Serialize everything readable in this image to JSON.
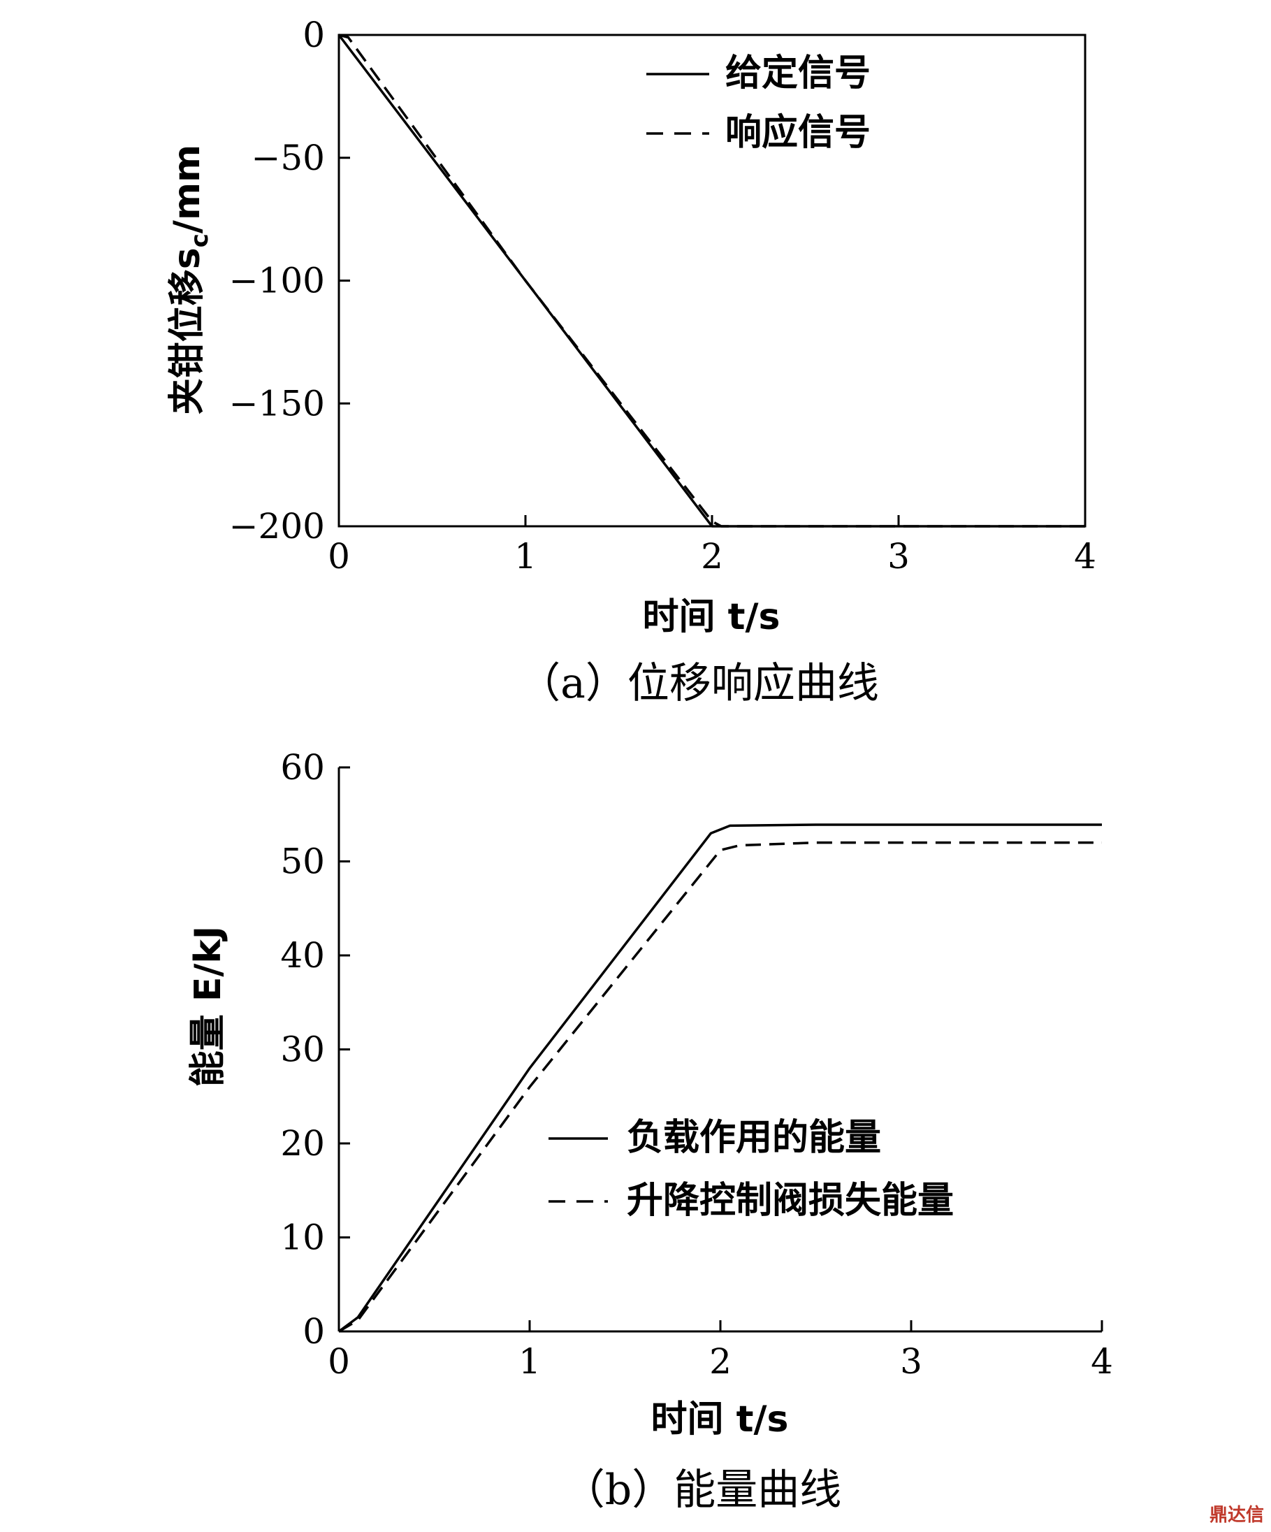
{
  "chart_data": [
    {
      "type": "line",
      "caption": "（a）位移响应曲线",
      "xlabel": "时间 t/s",
      "ylabel": "夹钳位移s",
      "ylabel_sub": "c",
      "ylabel_unit": "/mm",
      "xlim": [
        0,
        4
      ],
      "ylim": [
        -200,
        0
      ],
      "xticks": [
        0,
        1,
        2,
        3,
        4
      ],
      "yticks": [
        0,
        -50,
        -100,
        -150,
        -200
      ],
      "legend_position": "top-right",
      "series": [
        {
          "name": "给定信号",
          "style": "solid",
          "x": [
            0,
            2,
            4
          ],
          "y": [
            0,
            -200,
            -200
          ]
        },
        {
          "name": "响应信号",
          "style": "dashed",
          "x": [
            0,
            0.05,
            1.0,
            2.0,
            2.05,
            4
          ],
          "y": [
            0,
            -1,
            -100,
            -198,
            -200,
            -200
          ]
        }
      ]
    },
    {
      "type": "line",
      "caption": "（b）能量曲线",
      "xlabel": "时间 t/s",
      "ylabel": "能量 E/kJ",
      "xlim": [
        0,
        4
      ],
      "ylim": [
        0,
        60
      ],
      "xticks": [
        0,
        1,
        2,
        3,
        4
      ],
      "yticks": [
        0,
        10,
        20,
        30,
        40,
        50,
        60
      ],
      "legend_position": "center-right",
      "series": [
        {
          "name": "负载作用的能量",
          "style": "solid",
          "x": [
            0,
            0.1,
            1.0,
            1.95,
            2.05,
            2.5,
            4
          ],
          "y": [
            0,
            1.5,
            28,
            53,
            53.8,
            53.9,
            53.9
          ]
        },
        {
          "name": "升降控制阀损失能量",
          "style": "dashed",
          "x": [
            0,
            0.1,
            1.0,
            2.0,
            2.1,
            2.5,
            4
          ],
          "y": [
            0,
            1.2,
            26,
            51.2,
            51.7,
            52,
            52
          ]
        }
      ]
    }
  ],
  "watermark": "鼎达信"
}
